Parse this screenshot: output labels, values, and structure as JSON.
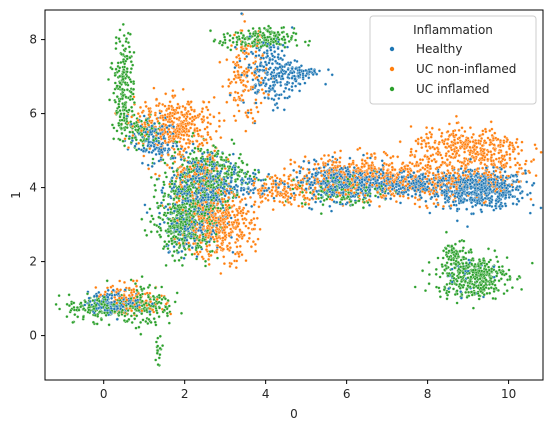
{
  "chart_data": {
    "type": "scatter",
    "xlabel": "0",
    "ylabel": "1",
    "xlim": [
      -1.45,
      10.85
    ],
    "ylim": [
      -1.2,
      8.8
    ],
    "xticks": [
      0,
      2,
      4,
      6,
      8,
      10
    ],
    "yticks": [
      0,
      2,
      4,
      6,
      8
    ],
    "grid": false,
    "legend": {
      "title": "Inflammation",
      "placement": "top-right"
    },
    "series": [
      {
        "name": "Healthy",
        "color": "#1f77b4",
        "clusters": [
          {
            "cx": 9.3,
            "cy": 3.95,
            "sx": 0.55,
            "sy": 0.25,
            "w": 8
          },
          {
            "cx": 7.5,
            "cy": 4.1,
            "sx": 0.9,
            "sy": 0.18,
            "w": 5
          },
          {
            "cx": 5.9,
            "cy": 4.15,
            "sx": 0.6,
            "sy": 0.25,
            "w": 5
          },
          {
            "cx": 2.4,
            "cy": 4.0,
            "sx": 0.4,
            "sy": 0.45,
            "w": 5
          },
          {
            "cx": 2.2,
            "cy": 2.9,
            "sx": 0.35,
            "sy": 0.3,
            "w": 2
          },
          {
            "cx": 4.1,
            "cy": 7.1,
            "sx": 0.35,
            "sy": 0.45,
            "w": 3
          },
          {
            "cx": 4.8,
            "cy": 7.1,
            "sx": 0.3,
            "sy": 0.12,
            "w": 1
          },
          {
            "cx": 1.2,
            "cy": 5.3,
            "sx": 0.3,
            "sy": 0.3,
            "w": 2
          },
          {
            "cx": 0.3,
            "cy": 0.9,
            "sx": 0.35,
            "sy": 0.15,
            "w": 2
          },
          {
            "cx": 3.4,
            "cy": 4.1,
            "sx": 0.4,
            "sy": 0.2,
            "w": 1
          },
          {
            "cx": 8.9,
            "cy": 1.6,
            "sx": 0.3,
            "sy": 0.3,
            "w": 0.4
          }
        ],
        "count": 2600
      },
      {
        "name": "UC non-inflamed",
        "color": "#ff7f0e",
        "clusters": [
          {
            "cx": 9.0,
            "cy": 5.1,
            "sx": 0.7,
            "sy": 0.25,
            "w": 4
          },
          {
            "cx": 8.0,
            "cy": 4.2,
            "sx": 0.8,
            "sy": 0.3,
            "w": 4
          },
          {
            "cx": 6.2,
            "cy": 4.3,
            "sx": 0.7,
            "sy": 0.28,
            "w": 5
          },
          {
            "cx": 4.5,
            "cy": 3.95,
            "sx": 0.5,
            "sy": 0.2,
            "w": 2
          },
          {
            "cx": 2.8,
            "cy": 3.0,
            "sx": 0.45,
            "sy": 0.45,
            "w": 6
          },
          {
            "cx": 1.8,
            "cy": 5.7,
            "sx": 0.5,
            "sy": 0.35,
            "w": 5
          },
          {
            "cx": 3.5,
            "cy": 7.0,
            "sx": 0.25,
            "sy": 0.6,
            "w": 2
          },
          {
            "cx": 2.3,
            "cy": 4.2,
            "sx": 0.4,
            "sy": 0.4,
            "w": 2
          },
          {
            "cx": 0.7,
            "cy": 1.0,
            "sx": 0.4,
            "sy": 0.2,
            "w": 1.5
          },
          {
            "cx": 9.6,
            "cy": 4.5,
            "sx": 0.5,
            "sy": 0.3,
            "w": 2
          }
        ],
        "count": 2600
      },
      {
        "name": "UC inflamed",
        "color": "#2ca02c",
        "clusters": [
          {
            "cx": 9.1,
            "cy": 1.6,
            "sx": 0.45,
            "sy": 0.3,
            "w": 6
          },
          {
            "cx": 8.7,
            "cy": 2.2,
            "sx": 0.15,
            "sy": 0.2,
            "w": 1
          },
          {
            "cx": 2.0,
            "cy": 3.0,
            "sx": 0.35,
            "sy": 0.4,
            "w": 6
          },
          {
            "cx": 2.3,
            "cy": 4.1,
            "sx": 0.45,
            "sy": 0.5,
            "w": 5
          },
          {
            "cx": 0.5,
            "cy": 6.8,
            "sx": 0.13,
            "sy": 0.65,
            "w": 3
          },
          {
            "cx": 0.9,
            "cy": 5.5,
            "sx": 0.3,
            "sy": 0.2,
            "w": 1.5
          },
          {
            "cx": 3.8,
            "cy": 8.0,
            "sx": 0.45,
            "sy": 0.15,
            "w": 3
          },
          {
            "cx": 0.0,
            "cy": 0.75,
            "sx": 0.45,
            "sy": 0.18,
            "w": 3
          },
          {
            "cx": 1.1,
            "cy": 0.85,
            "sx": 0.3,
            "sy": 0.3,
            "w": 2
          },
          {
            "cx": 1.35,
            "cy": -0.4,
            "sx": 0.08,
            "sy": 0.25,
            "w": 0.3
          },
          {
            "cx": 5.9,
            "cy": 3.9,
            "sx": 0.5,
            "sy": 0.2,
            "w": 2
          },
          {
            "cx": 3.0,
            "cy": 4.4,
            "sx": 0.4,
            "sy": 0.3,
            "w": 1.5
          }
        ],
        "count": 2200
      }
    ]
  }
}
